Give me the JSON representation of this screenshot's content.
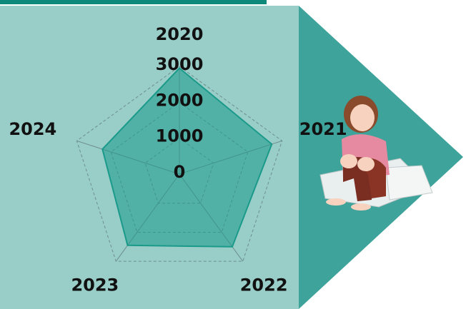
{
  "chart_data": {
    "type": "radar",
    "categories": [
      "2020",
      "2021",
      "2022",
      "2023",
      "2024"
    ],
    "values": [
      2950,
      2700,
      2500,
      2450,
      2250
    ],
    "color": "#1a9a8a",
    "ylim": [
      0,
      3000
    ],
    "yticks": [
      0,
      1000,
      2000,
      3000
    ],
    "grid": true
  }
}
